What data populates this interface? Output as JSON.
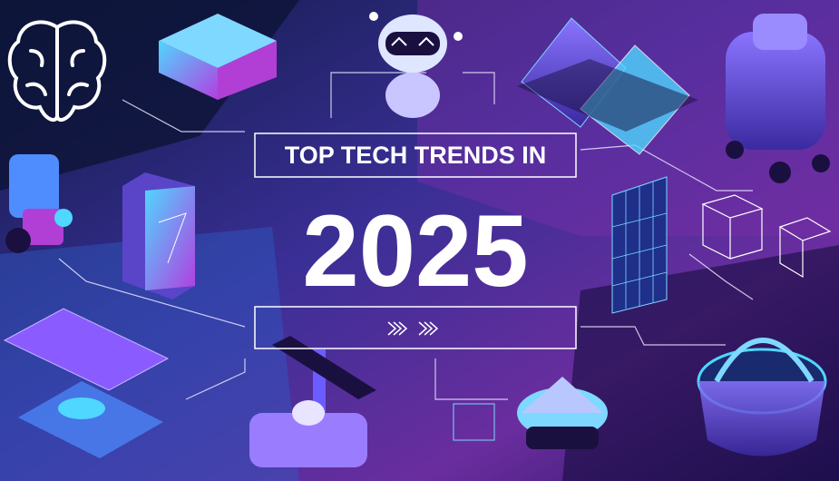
{
  "banner": {
    "title": "TOP TECH TRENDS IN",
    "year": "2025"
  }
}
